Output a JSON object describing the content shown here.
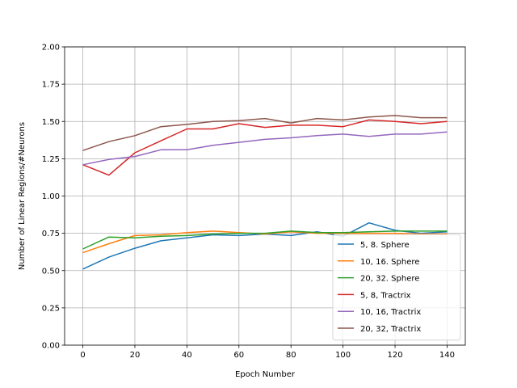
{
  "chart_data": {
    "type": "line",
    "title": "",
    "xlabel": "Epoch Number",
    "ylabel": "Number of Linear Regions/#Neurons",
    "xlim": [
      -7,
      147
    ],
    "ylim": [
      0,
      2.0
    ],
    "x_ticks": [
      0,
      20,
      40,
      60,
      80,
      100,
      120,
      140
    ],
    "x_tick_labels": [
      "0",
      "20",
      "40",
      "60",
      "80",
      "100",
      "120",
      "140"
    ],
    "y_ticks": [
      0,
      0.25,
      0.5,
      0.75,
      1.0,
      1.25,
      1.5,
      1.75,
      2.0
    ],
    "y_tick_labels": [
      "0.00",
      "0.25",
      "0.50",
      "0.75",
      "1.00",
      "1.25",
      "1.50",
      "1.75",
      "2.00"
    ],
    "grid": true,
    "legend_position": "bottom-right",
    "x": [
      0,
      10,
      20,
      30,
      40,
      50,
      60,
      70,
      80,
      90,
      100,
      110,
      120,
      130,
      140
    ],
    "series": [
      {
        "name": "5, 8. Sphere",
        "color": "#1f77b4",
        "values": [
          0.51,
          0.59,
          0.65,
          0.7,
          0.72,
          0.74,
          0.735,
          0.745,
          0.735,
          0.76,
          0.73,
          0.82,
          0.77,
          0.75,
          0.76
        ]
      },
      {
        "name": "10, 16. Sphere",
        "color": "#ff7f0e",
        "values": [
          0.62,
          0.68,
          0.735,
          0.74,
          0.755,
          0.765,
          0.755,
          0.745,
          0.76,
          0.75,
          0.75,
          0.75,
          0.75,
          0.745,
          0.745
        ]
      },
      {
        "name": "20, 32. Sphere",
        "color": "#2ca02c",
        "values": [
          0.645,
          0.725,
          0.72,
          0.73,
          0.735,
          0.745,
          0.75,
          0.75,
          0.765,
          0.755,
          0.755,
          0.76,
          0.765,
          0.765,
          0.765
        ]
      },
      {
        "name": "5, 8, Tractrix",
        "color": "#d62728",
        "values": [
          1.21,
          1.14,
          1.29,
          1.37,
          1.45,
          1.45,
          1.485,
          1.46,
          1.475,
          1.475,
          1.465,
          1.51,
          1.5,
          1.485,
          1.5
        ]
      },
      {
        "name": "10, 16, Tractrix",
        "color": "#9467bd",
        "values": [
          1.21,
          1.245,
          1.265,
          1.31,
          1.31,
          1.34,
          1.36,
          1.38,
          1.39,
          1.405,
          1.415,
          1.4,
          1.415,
          1.415,
          1.43
        ]
      },
      {
        "name": "20, 32, Tractrix",
        "color": "#8c564b",
        "values": [
          1.305,
          1.365,
          1.405,
          1.465,
          1.48,
          1.5,
          1.505,
          1.52,
          1.49,
          1.52,
          1.51,
          1.53,
          1.54,
          1.525,
          1.525
        ]
      }
    ]
  }
}
